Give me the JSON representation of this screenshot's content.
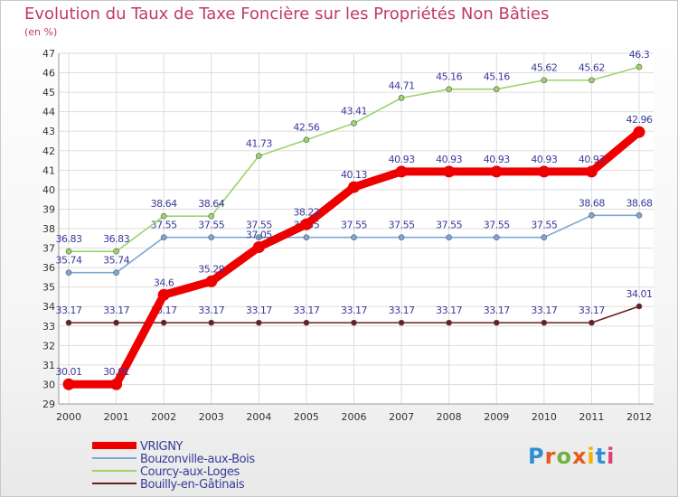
{
  "title": "Evolution du Taux de Taxe Foncière sur les Propriétés Non Bâties",
  "unit_label": "(en %)",
  "logo": {
    "text": "Proxiti",
    "letter_colors": [
      "#2f8fd6",
      "#e85a1b",
      "#6db33f",
      "#e85a1b",
      "#f0b400",
      "#2f8fd6",
      "#e23c7a"
    ]
  },
  "chart_data": {
    "type": "line",
    "title": "Evolution du Taux de Taxe Foncière sur les Propriétés Non Bâties",
    "ylabel": "(en %)",
    "xlabel": "",
    "ylim": [
      29,
      47
    ],
    "yticks": [
      "29",
      "30",
      "31",
      "32",
      "33",
      "34",
      "35",
      "36",
      "37",
      "38",
      "39",
      "40",
      "41",
      "42",
      "43",
      "44",
      "45",
      "46",
      "47"
    ],
    "grid": true,
    "x": [
      "2000",
      "2001",
      "2002",
      "2003",
      "2004",
      "2005",
      "2006",
      "2007",
      "2008",
      "2009",
      "2010",
      "2011",
      "2012"
    ],
    "series": [
      {
        "name": "Bouilly-en-Gâtinais",
        "color": "#6b1e1e",
        "values": [
          33.17,
          33.17,
          33.17,
          33.17,
          33.17,
          33.17,
          33.17,
          33.17,
          33.17,
          33.17,
          33.17,
          33.17,
          34.01
        ],
        "labels": [
          "33.17",
          "33.17",
          "33.17",
          "33.17",
          "33.17",
          "33.17",
          "33.17",
          "33.17",
          "33.17",
          "33.17",
          "33.17",
          "33.17",
          "34.01"
        ]
      },
      {
        "name": "Bouzonville-aux-Bois",
        "color": "#7da7d6",
        "values": [
          35.74,
          35.74,
          37.55,
          37.55,
          37.55,
          37.55,
          37.55,
          37.55,
          37.55,
          37.55,
          37.55,
          38.68,
          38.68
        ],
        "labels": [
          "35.74",
          "35.74",
          "37.55",
          "37.55",
          "37.55",
          "37.55",
          "37.55",
          "37.55",
          "37.55",
          "37.55",
          "37.55",
          "38.68",
          "38.68"
        ]
      },
      {
        "name": "Courcy-aux-Loges",
        "color": "#9bd46b",
        "values": [
          36.83,
          36.83,
          38.64,
          38.64,
          41.73,
          42.56,
          43.41,
          44.71,
          45.16,
          45.16,
          45.62,
          45.62,
          46.3
        ],
        "labels": [
          "36.83",
          "36.83",
          "38.64",
          "38.64",
          "41.73",
          "42.56",
          "43.41",
          "44.71",
          "45.16",
          "45.16",
          "45.62",
          "45.62",
          "46.3"
        ]
      },
      {
        "name": "VRIGNY",
        "color": "#ee0000",
        "values": [
          30.01,
          30.01,
          34.6,
          35.29,
          37.05,
          38.22,
          40.13,
          40.93,
          40.93,
          40.93,
          40.93,
          40.93,
          42.96
        ],
        "labels": [
          "30.01",
          "30.01",
          "34.6",
          "35.29",
          "37.05",
          "38.22",
          "40.13",
          "40.93",
          "40.93",
          "40.93",
          "40.93",
          "40.93",
          "42.96"
        ]
      }
    ],
    "legend": [
      {
        "name": "VRIGNY",
        "color": "#ee0000",
        "emphasis": true
      },
      {
        "name": "Bouzonville-aux-Bois",
        "color": "#7da7d6",
        "emphasis": false
      },
      {
        "name": "Courcy-aux-Loges",
        "color": "#9bd46b",
        "emphasis": false
      },
      {
        "name": "Bouilly-en-Gâtinais",
        "color": "#6b1e1e",
        "emphasis": false
      }
    ],
    "legend_position": "bottom-left",
    "label_color": "#3a3a9a",
    "axis_text_color": "#333333"
  }
}
